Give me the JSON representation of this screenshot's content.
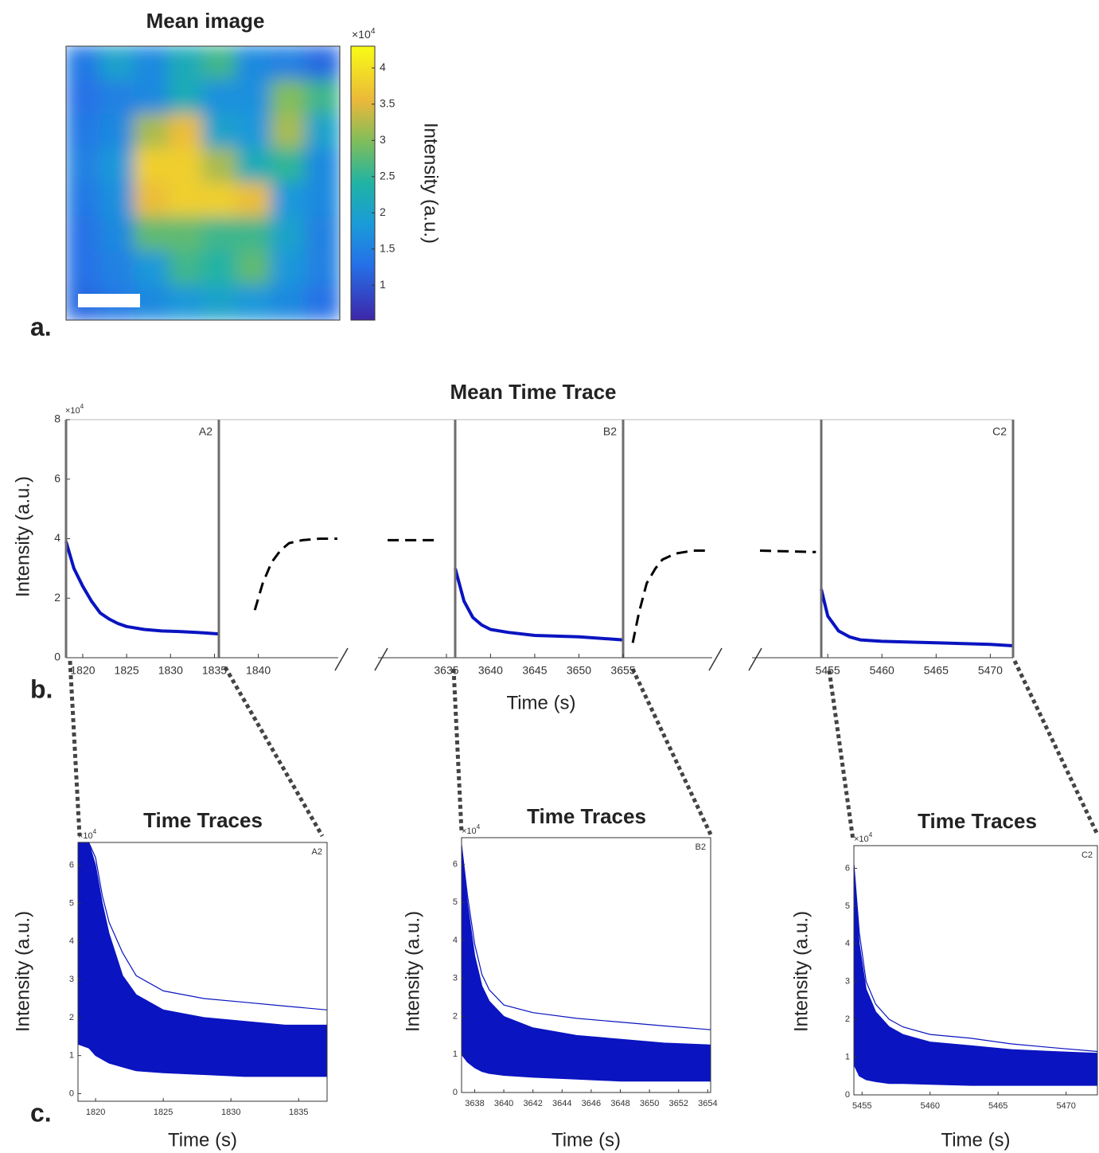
{
  "chart_data": [
    {
      "type": "heatmap",
      "panel_label": "a.",
      "title": "Mean image",
      "colormap": "parula",
      "values": [
        [
          1.4,
          2.0,
          1.6,
          2.2,
          2.6,
          1.6,
          1.5,
          1.2
        ],
        [
          1.3,
          1.5,
          1.6,
          2.2,
          1.7,
          1.7,
          3.0,
          2.6
        ],
        [
          1.4,
          1.6,
          3.2,
          3.6,
          2.0,
          1.8,
          3.2,
          2.0
        ],
        [
          1.5,
          1.8,
          3.8,
          3.8,
          3.2,
          2.2,
          2.5,
          1.6
        ],
        [
          1.4,
          1.7,
          3.6,
          3.8,
          3.8,
          3.6,
          1.8,
          1.6
        ],
        [
          1.3,
          1.6,
          2.8,
          2.8,
          2.6,
          2.6,
          2.0,
          1.5
        ],
        [
          1.3,
          1.5,
          1.8,
          2.6,
          2.4,
          2.8,
          1.8,
          1.5
        ],
        [
          1.2,
          1.4,
          1.6,
          1.8,
          2.0,
          1.8,
          1.6,
          1.3
        ]
      ],
      "colorbar": {
        "label": "Intensity (a.u.)",
        "exponent": {
          "base": "×10",
          "power": "4"
        },
        "ylim": [
          0.52,
          4.3
        ],
        "yticks": [
          1,
          1.5,
          2,
          2.5,
          3,
          3.5,
          4
        ]
      }
    },
    {
      "type": "broken-line",
      "panel_label": "b.",
      "title": "Mean Time Trace",
      "ylabel": "Intensity (a.u.)",
      "xlabel": "Time (s)",
      "exponent": {
        "base": "×10",
        "power": "4"
      },
      "ylim": [
        0,
        8
      ],
      "yticks": [
        0,
        2,
        4,
        6,
        8
      ],
      "segments": [
        {
          "label": "A2",
          "xlim": [
            1818.1,
            1835.5
          ],
          "xticks": [
            1820,
            1825,
            1830,
            1835
          ],
          "series": [
            {
              "color": "#0a14c0",
              "dash": false,
              "x": [
                1818.1,
                1819,
                1820,
                1821,
                1822,
                1823,
                1824,
                1825,
                1827,
                1829,
                1831,
                1833,
                1835.5
              ],
              "values": [
                3.9,
                3.0,
                2.4,
                1.9,
                1.5,
                1.3,
                1.15,
                1.05,
                0.95,
                0.9,
                0.88,
                0.85,
                0.8
              ]
            }
          ]
        },
        {
          "xlim": [
            1835.5,
            1849.1
          ],
          "xticks": [
            1840
          ],
          "series": [
            {
              "color": "#000000",
              "dash": true,
              "x": [
                1839.6,
                1840.5,
                1841.5,
                1842.5,
                1843.5,
                1845,
                1847,
                1849
              ],
              "values": [
                1.6,
                2.5,
                3.2,
                3.6,
                3.85,
                3.95,
                4.0,
                4.0
              ]
            }
          ]
        },
        {
          "xlim": [
            3627.2,
            3636
          ],
          "xticks": [
            3635
          ],
          "series": [
            {
              "color": "#000000",
              "dash": true,
              "x": [
                3628.3,
                3634
              ],
              "values": [
                3.95,
                3.95
              ]
            }
          ]
        },
        {
          "label": "B2",
          "xlim": [
            3636,
            3655
          ],
          "xticks": [
            3640,
            3645,
            3650
          ],
          "series": [
            {
              "color": "#0a14c0",
              "dash": false,
              "x": [
                3636,
                3637,
                3638,
                3639,
                3640,
                3642,
                3645,
                3650,
                3655
              ],
              "values": [
                3.0,
                1.9,
                1.35,
                1.1,
                0.95,
                0.85,
                0.75,
                0.7,
                0.6
              ]
            }
          ]
        },
        {
          "xlim": [
            3655,
            3665.2
          ],
          "xticks": [
            3655
          ],
          "series": [
            {
              "color": "#000000",
              "dash": true,
              "x": [
                3656.1,
                3656.8,
                3657.7,
                3658.7,
                3659.5,
                3661,
                3663,
                3665
              ],
              "values": [
                0.5,
                1.5,
                2.5,
                3.0,
                3.3,
                3.5,
                3.6,
                3.6
              ]
            }
          ]
        },
        {
          "xlim": [
            5446.6,
            5454.4
          ],
          "xticks": [],
          "series": [
            {
              "color": "#000000",
              "dash": true,
              "x": [
                5447.5,
                5453.8
              ],
              "values": [
                3.6,
                3.55
              ]
            }
          ]
        },
        {
          "label": "C2",
          "xlim": [
            5454.4,
            5472.1
          ],
          "xticks": [
            5455,
            5460,
            5465,
            5470
          ],
          "series": [
            {
              "color": "#0a14c0",
              "dash": false,
              "x": [
                5454.4,
                5455,
                5456,
                5457,
                5458,
                5460,
                5465,
                5470,
                5472.1
              ],
              "values": [
                2.3,
                1.4,
                0.9,
                0.7,
                0.6,
                0.55,
                0.5,
                0.45,
                0.4
              ]
            }
          ]
        }
      ]
    },
    {
      "type": "traces",
      "panel_label": "c.",
      "title": "Time Traces",
      "label": "A2",
      "ylabel": "Intensity (a.u.)",
      "xlabel": "Time (s)",
      "exponent": {
        "base": "×10",
        "power": "4"
      },
      "xlim": [
        1818.7,
        1837.1
      ],
      "xticks": [
        1820,
        1825,
        1830,
        1835
      ],
      "ylim": [
        -0.2,
        6.6
      ],
      "yticks": [
        0,
        1,
        2,
        3,
        4,
        5,
        6
      ],
      "color": "#0a14c0",
      "x": [
        1818.7,
        1819.5,
        1820,
        1820.5,
        1821,
        1822,
        1823,
        1825,
        1828,
        1831,
        1834,
        1837.1
      ],
      "upper": [
        6.6,
        6.6,
        6.0,
        5.0,
        4.2,
        3.1,
        2.6,
        2.2,
        2.0,
        1.9,
        1.8,
        1.8
      ],
      "lower": [
        1.3,
        1.2,
        1.0,
        0.9,
        0.8,
        0.7,
        0.6,
        0.55,
        0.5,
        0.45,
        0.45,
        0.45
      ],
      "lines": [
        [
          6.6,
          6.6,
          6.2,
          5.2,
          4.5,
          3.7,
          3.1,
          2.7,
          2.5,
          2.4,
          2.3,
          2.2
        ],
        [
          1.5,
          1.4,
          1.3,
          1.15,
          1.0,
          0.85,
          0.75,
          0.65,
          0.6,
          0.55,
          0.5,
          0.5
        ]
      ]
    },
    {
      "type": "traces",
      "title": "Time Traces",
      "label": "B2",
      "ylabel": "Intensity (a.u.)",
      "xlabel": "Time (s)",
      "exponent": {
        "base": "×10",
        "power": "4"
      },
      "xlim": [
        3637.1,
        3654.2
      ],
      "xticks": [
        3638,
        3640,
        3642,
        3644,
        3646,
        3648,
        3650,
        3652,
        3654
      ],
      "ylim": [
        0,
        6.7
      ],
      "yticks": [
        0,
        1,
        2,
        3,
        4,
        5,
        6
      ],
      "color": "#0a14c0",
      "x": [
        3637.1,
        3637.5,
        3638,
        3638.5,
        3639,
        3640,
        3642,
        3645,
        3648,
        3651,
        3654.2
      ],
      "upper": [
        6.5,
        5.0,
        3.6,
        2.8,
        2.4,
        2.0,
        1.7,
        1.5,
        1.4,
        1.3,
        1.25
      ],
      "lower": [
        1.0,
        0.8,
        0.65,
        0.55,
        0.5,
        0.45,
        0.4,
        0.35,
        0.3,
        0.3,
        0.3
      ],
      "lines": [
        [
          6.5,
          5.2,
          3.9,
          3.1,
          2.7,
          2.3,
          2.1,
          1.95,
          1.85,
          1.75,
          1.65
        ]
      ]
    },
    {
      "type": "traces",
      "title": "Time Traces",
      "label": "C2",
      "ylabel": "Intensity (a.u.)",
      "xlabel": "Time (s)",
      "exponent": {
        "base": "×10",
        "power": "4"
      },
      "xlim": [
        5454.4,
        5472.3
      ],
      "xticks": [
        5455,
        5460,
        5465,
        5470
      ],
      "ylim": [
        0,
        6.6
      ],
      "yticks": [
        0,
        1,
        2,
        3,
        4,
        5,
        6
      ],
      "color": "#0a14c0",
      "x": [
        5454.4,
        5454.8,
        5455.3,
        5456,
        5457,
        5458,
        5460,
        5463,
        5466,
        5469,
        5472.3
      ],
      "upper": [
        6.1,
        4.0,
        2.8,
        2.2,
        1.8,
        1.6,
        1.4,
        1.3,
        1.2,
        1.15,
        1.1
      ],
      "lower": [
        0.8,
        0.5,
        0.4,
        0.35,
        0.3,
        0.3,
        0.28,
        0.25,
        0.25,
        0.25,
        0.25
      ],
      "lines": [
        [
          6.1,
          4.3,
          3.0,
          2.4,
          2.0,
          1.8,
          1.6,
          1.5,
          1.35,
          1.25,
          1.15
        ]
      ]
    }
  ]
}
